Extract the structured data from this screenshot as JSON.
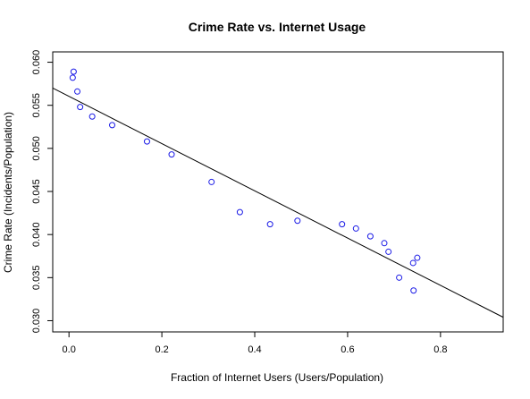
{
  "chart_data": {
    "type": "scatter",
    "title": "Crime Rate vs. Internet Usage",
    "xlabel": "Fraction of Internet Users (Users/Population)",
    "ylabel": "Crime Rate (Incidents/Population)",
    "xlim": [
      -0.035,
      0.935
    ],
    "ylim": [
      0.0287,
      0.0612
    ],
    "xticks": [
      0.0,
      0.2,
      0.4,
      0.6,
      0.8
    ],
    "xtick_labels": [
      "0.0",
      "0.2",
      "0.4",
      "0.6",
      "0.8"
    ],
    "yticks": [
      0.03,
      0.035,
      0.04,
      0.045,
      0.05,
      0.055,
      0.06
    ],
    "ytick_labels": [
      "0.030",
      "0.035",
      "0.040",
      "0.045",
      "0.050",
      "0.055",
      "0.060"
    ],
    "grid": false,
    "point_color": "#1a1ae6",
    "line_color": "#000000",
    "points": [
      {
        "x": 0.01,
        "y": 0.0589
      },
      {
        "x": 0.008,
        "y": 0.0582
      },
      {
        "x": 0.018,
        "y": 0.0566
      },
      {
        "x": 0.024,
        "y": 0.0548
      },
      {
        "x": 0.05,
        "y": 0.0537
      },
      {
        "x": 0.093,
        "y": 0.0527
      },
      {
        "x": 0.168,
        "y": 0.0508
      },
      {
        "x": 0.221,
        "y": 0.0493
      },
      {
        "x": 0.307,
        "y": 0.0461
      },
      {
        "x": 0.368,
        "y": 0.0426
      },
      {
        "x": 0.433,
        "y": 0.0412
      },
      {
        "x": 0.492,
        "y": 0.0416
      },
      {
        "x": 0.588,
        "y": 0.0412
      },
      {
        "x": 0.618,
        "y": 0.0407
      },
      {
        "x": 0.649,
        "y": 0.0398
      },
      {
        "x": 0.679,
        "y": 0.039
      },
      {
        "x": 0.688,
        "y": 0.038
      },
      {
        "x": 0.711,
        "y": 0.035
      },
      {
        "x": 0.741,
        "y": 0.0367
      },
      {
        "x": 0.75,
        "y": 0.0373
      },
      {
        "x": 0.742,
        "y": 0.0335
      }
    ],
    "regression_line": [
      {
        "x": -0.035,
        "y": 0.057
      },
      {
        "x": 0.935,
        "y": 0.0304
      }
    ]
  }
}
